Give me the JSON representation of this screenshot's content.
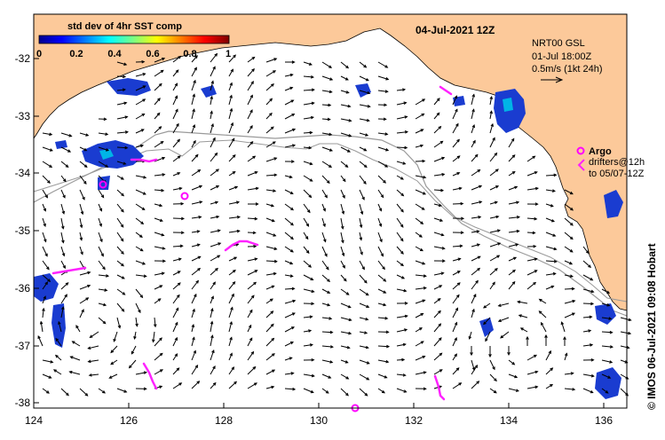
{
  "title": "04-Jul-2021 12Z",
  "colorbar": {
    "title": "std dev of 4hr SST comp",
    "ticks": [
      "0",
      "0.2",
      "0.4",
      "0.6",
      "0.8",
      "1"
    ]
  },
  "model_info": {
    "line1": "NRT00 GSL",
    "line2": "01-Jul 18:00Z",
    "line3": "0.5m/s (1kt 24h)"
  },
  "legend": {
    "argo_label": "Argo",
    "drifters_line1": "drifters@12h",
    "drifters_line2": "to 05/07-12Z"
  },
  "credit": "© IMOS 06-Jul-2021 09:08 Hobart",
  "axes": {
    "x_ticks": [
      "124",
      "126",
      "128",
      "130",
      "132",
      "134",
      "136"
    ],
    "y_ticks": [
      "-32",
      "-33",
      "-34",
      "-35",
      "-36",
      "-37",
      "-38"
    ]
  },
  "colors": {
    "land": "#fcc99a",
    "ocean": "#ffffff",
    "argo": "#ff00ff",
    "drifter": "#ff22ff",
    "isobath": "#9a9a9a",
    "sst_blue": "#1a3cd0"
  }
}
